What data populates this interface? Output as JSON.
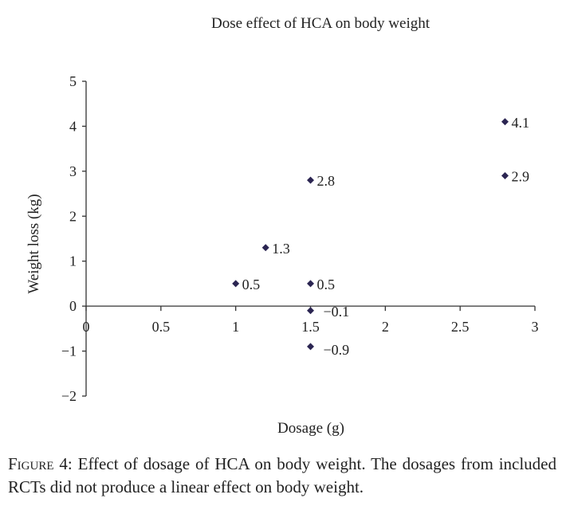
{
  "chart_data": {
    "type": "scatter",
    "title": "Dose effect of HCA on body weight",
    "xlabel": "Dosage (g)",
    "ylabel": "Weight loss (kg)",
    "xlim": [
      0,
      3
    ],
    "ylim": [
      -2,
      5
    ],
    "xticks": [
      0,
      0.5,
      1,
      1.5,
      2,
      2.5,
      3
    ],
    "xtick_labels": [
      "0",
      "0.5",
      "1",
      "1.5",
      "2",
      "2.5",
      "3"
    ],
    "yticks": [
      -2,
      -1,
      0,
      1,
      2,
      3,
      4,
      5
    ],
    "ytick_labels": [
      "−2",
      "−1",
      "0",
      "1",
      "2",
      "3",
      "4",
      "5"
    ],
    "grid": false,
    "marker": "diamond",
    "marker_color": "#2b2552",
    "points": [
      {
        "x": 1.0,
        "y": 0.5,
        "label": "0.5"
      },
      {
        "x": 1.2,
        "y": 1.3,
        "label": "1.3"
      },
      {
        "x": 1.5,
        "y": 2.8,
        "label": "2.8"
      },
      {
        "x": 1.5,
        "y": 0.5,
        "label": "0.5"
      },
      {
        "x": 1.5,
        "y": -0.1,
        "label": "−0.1"
      },
      {
        "x": 1.5,
        "y": -0.9,
        "label": "−0.9"
      },
      {
        "x": 2.8,
        "y": 4.1,
        "label": "4.1"
      },
      {
        "x": 2.8,
        "y": 2.9,
        "label": "2.9"
      }
    ]
  },
  "caption": {
    "label": "Figure 4:",
    "text": " Effect of dosage of HCA on body weight. The dosages from included RCTs did not produce a linear effect on body weight."
  }
}
